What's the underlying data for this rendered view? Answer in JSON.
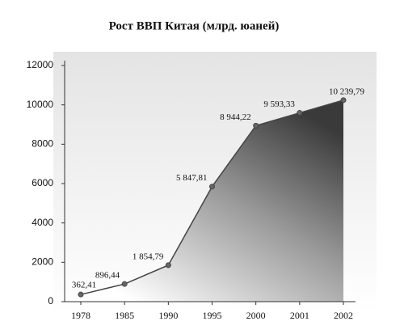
{
  "chart_data": {
    "type": "area",
    "title": "Рост ВВП Китая (млрд. юаней)",
    "categories": [
      "1978",
      "1985",
      "1990",
      "1995",
      "2000",
      "2001",
      "2002"
    ],
    "values": [
      362.41,
      896.44,
      1854.79,
      5847.81,
      8944.22,
      9593.33,
      10239.79
    ],
    "value_labels": [
      "362,41",
      "896,44",
      "1 854,79",
      "5 847,81",
      "8 944,22",
      "9 593,33",
      "10 239,79"
    ],
    "color": "#555555",
    "ylim": [
      0,
      12000
    ],
    "yticks": [
      0,
      2000,
      4000,
      6000,
      8000,
      10000,
      12000
    ],
    "grid": false
  }
}
